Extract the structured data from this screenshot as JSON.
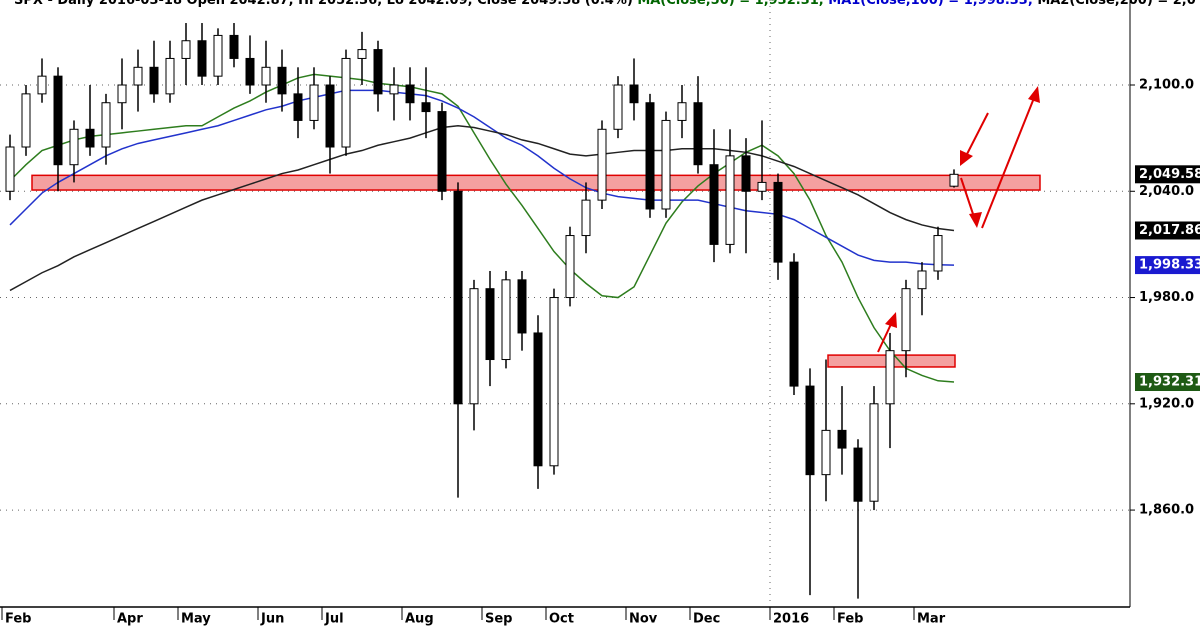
{
  "chart_data": {
    "type": "candlestick",
    "title_parts": [
      {
        "text": "SPX - Daily 2016-03-18 Open 2042.87, Hi 2052.36, Lo 2042.09, Close 2049.58 (0.4%) ",
        "color": "#000000"
      },
      {
        "text": "MA(Close,50) = 1,932.31, ",
        "color": "#006400"
      },
      {
        "text": "MA1(Close,100) = 1,998.33, ",
        "color": "#0000cc"
      },
      {
        "text": "MA2(Close,200) = 2,0",
        "color": "#000000"
      }
    ],
    "categories": [
      "Feb",
      null,
      null,
      null,
      null,
      null,
      null,
      "Apr",
      null,
      null,
      null,
      "May",
      null,
      null,
      null,
      null,
      "Jun",
      null,
      null,
      null,
      "Jul",
      null,
      null,
      null,
      null,
      "Aug",
      null,
      null,
      null,
      null,
      "Sep",
      null,
      null,
      null,
      "Oct",
      null,
      null,
      null,
      null,
      "Nov",
      null,
      null,
      null,
      "Dec",
      null,
      null,
      null,
      null,
      "2016",
      null,
      null,
      null,
      "Feb",
      null,
      null,
      null,
      null,
      "Mar",
      null,
      null
    ],
    "candles": {
      "open": [
        2040,
        2065,
        2095,
        2105,
        2055,
        2075,
        2065,
        2090,
        2100,
        2110,
        2095,
        2115,
        2125,
        2105,
        2128,
        2115,
        2100,
        2110,
        2095,
        2080,
        2100,
        2065,
        2115,
        2120,
        2095,
        2100,
        2090,
        2085,
        2040,
        1920,
        1985,
        1945,
        1990,
        1960,
        1885,
        1980,
        2015,
        2035,
        2075,
        2100,
        2090,
        2030,
        2080,
        2090,
        2055,
        2010,
        2060,
        2040,
        2045,
        2000,
        1930,
        1880,
        1905,
        1895,
        1865,
        1920,
        1950,
        1985,
        1995,
        2042.87
      ],
      "high": [
        2072,
        2100,
        2115,
        2110,
        2080,
        2100,
        2095,
        2115,
        2120,
        2125,
        2125,
        2135,
        2135,
        2132,
        2135,
        2128,
        2125,
        2120,
        2110,
        2110,
        2105,
        2120,
        2130,
        2125,
        2110,
        2110,
        2110,
        2090,
        2045,
        1990,
        1995,
        1995,
        1995,
        1970,
        1985,
        2020,
        2045,
        2080,
        2105,
        2115,
        2095,
        2085,
        2100,
        2105,
        2075,
        2075,
        2070,
        2080,
        2050,
        2005,
        1940,
        1945,
        1930,
        1900,
        1930,
        1960,
        1990,
        2000,
        2020,
        2052.36
      ],
      "low": [
        2035,
        2060,
        2090,
        2040,
        2045,
        2060,
        2055,
        2075,
        2085,
        2090,
        2090,
        2100,
        2100,
        2100,
        2110,
        2095,
        2090,
        2085,
        2070,
        2075,
        2050,
        2060,
        2100,
        2085,
        2080,
        2080,
        2070,
        2035,
        1867,
        1905,
        1930,
        1940,
        1950,
        1872,
        1880,
        1975,
        2005,
        2030,
        2070,
        2080,
        2025,
        2025,
        2070,
        2050,
        2000,
        2005,
        2005,
        2035,
        1990,
        1925,
        1812,
        1865,
        1880,
        1810,
        1860,
        1895,
        1935,
        1970,
        1990,
        2042.09
      ],
      "close": [
        2065,
        2095,
        2105,
        2055,
        2075,
        2065,
        2090,
        2100,
        2110,
        2095,
        2115,
        2125,
        2105,
        2128,
        2115,
        2100,
        2110,
        2095,
        2080,
        2100,
        2065,
        2115,
        2120,
        2095,
        2100,
        2090,
        2085,
        2040,
        1920,
        1985,
        1945,
        1990,
        1960,
        1885,
        1980,
        2015,
        2035,
        2075,
        2100,
        2090,
        2030,
        2080,
        2090,
        2055,
        2010,
        2060,
        2040,
        2045,
        2000,
        1930,
        1880,
        1905,
        1895,
        1865,
        1920,
        1950,
        1985,
        1995,
        2015,
        2049.58
      ],
      "value_labels": [
        null,
        null,
        null,
        null,
        null,
        null,
        null,
        null,
        null,
        null,
        null,
        null,
        null,
        null,
        null,
        null,
        null,
        null,
        null,
        null,
        null,
        null,
        null,
        null,
        null,
        null,
        null,
        null,
        null,
        null,
        null,
        null,
        null,
        null,
        null,
        null,
        null,
        null,
        null,
        null,
        null,
        null,
        null,
        null,
        null,
        null,
        null,
        null,
        null,
        null,
        null,
        null,
        null,
        null,
        null,
        null,
        null,
        null,
        null,
        "2,049.58"
      ],
      "up_color": "#ffffff",
      "down_color": "#000000",
      "label_color": "#000000"
    },
    "series": [
      {
        "name": "MA(Close,50)",
        "color": "#2e7d1e",
        "values": [
          2046,
          2055,
          2063,
          2066,
          2069,
          2071,
          2072,
          2073,
          2074,
          2075,
          2076,
          2077,
          2077,
          2082,
          2087,
          2091,
          2096,
          2100,
          2104,
          2106,
          2105,
          2104,
          2103,
          2101,
          2100,
          2099,
          2097,
          2095,
          2088,
          2073,
          2058,
          2044,
          2032,
          2019,
          2006,
          1996,
          1988,
          1981,
          1980,
          1986,
          2004,
          2022,
          2034,
          2043,
          2050,
          2056,
          2062,
          2066,
          2060,
          2050,
          2035,
          2015,
          2000,
          1980,
          1963,
          1950,
          1940,
          1936,
          1933,
          1932.31
        ],
        "value_labels": [
          null,
          null,
          null,
          null,
          null,
          null,
          null,
          null,
          null,
          null,
          null,
          null,
          null,
          null,
          null,
          null,
          null,
          null,
          null,
          null,
          null,
          null,
          null,
          null,
          null,
          null,
          null,
          null,
          null,
          null,
          null,
          null,
          null,
          null,
          null,
          null,
          null,
          null,
          null,
          null,
          null,
          null,
          null,
          null,
          null,
          null,
          null,
          null,
          null,
          null,
          null,
          null,
          null,
          null,
          null,
          null,
          null,
          null,
          null,
          "1,932.31"
        ],
        "label_color": "#1e5a14"
      },
      {
        "name": "MA1(Close,100)",
        "color": "#2233cc",
        "values": [
          2021,
          2030,
          2039,
          2045,
          2050,
          2055,
          2060,
          2064,
          2067,
          2069,
          2071,
          2073,
          2075,
          2077,
          2080,
          2083,
          2086,
          2088,
          2091,
          2093,
          2095,
          2097,
          2097,
          2097,
          2096,
          2095,
          2094,
          2091,
          2087,
          2082,
          2076,
          2070,
          2066,
          2060,
          2053,
          2047,
          2042,
          2039,
          2037,
          2036,
          2035,
          2035,
          2035,
          2035,
          2033,
          2031,
          2029,
          2028,
          2027,
          2024,
          2019,
          2014,
          2009,
          2004,
          2001,
          2000,
          2000,
          1999,
          1998.5,
          1998.33
        ],
        "value_labels": [
          null,
          null,
          null,
          null,
          null,
          null,
          null,
          null,
          null,
          null,
          null,
          null,
          null,
          null,
          null,
          null,
          null,
          null,
          null,
          null,
          null,
          null,
          null,
          null,
          null,
          null,
          null,
          null,
          null,
          null,
          null,
          null,
          null,
          null,
          null,
          null,
          null,
          null,
          null,
          null,
          null,
          null,
          null,
          null,
          null,
          null,
          null,
          null,
          null,
          null,
          null,
          null,
          null,
          null,
          null,
          null,
          null,
          null,
          null,
          "1,998.33"
        ],
        "label_color": "#1a1ad0"
      },
      {
        "name": "MA2(Close,200)",
        "color": "#222222",
        "values": [
          1984,
          1989,
          1994,
          1998,
          2003,
          2007,
          2011,
          2015,
          2019,
          2023,
          2027,
          2031,
          2035,
          2038,
          2041,
          2044,
          2047,
          2050,
          2052,
          2055,
          2058,
          2061,
          2063,
          2066,
          2068,
          2070,
          2073,
          2076,
          2077,
          2076,
          2074,
          2072,
          2069,
          2067,
          2064,
          2061,
          2060,
          2061,
          2062,
          2063,
          2063,
          2063,
          2064,
          2064,
          2064,
          2063,
          2062,
          2060,
          2057,
          2054,
          2050,
          2046,
          2042,
          2038,
          2033,
          2028,
          2024,
          2021,
          2019,
          2017.86
        ],
        "value_labels": [
          null,
          null,
          null,
          null,
          null,
          null,
          null,
          null,
          null,
          null,
          null,
          null,
          null,
          null,
          null,
          null,
          null,
          null,
          null,
          null,
          null,
          null,
          null,
          null,
          null,
          null,
          null,
          null,
          null,
          null,
          null,
          null,
          null,
          null,
          null,
          null,
          null,
          null,
          null,
          null,
          null,
          null,
          null,
          null,
          null,
          null,
          null,
          null,
          null,
          null,
          null,
          null,
          null,
          null,
          null,
          null,
          null,
          null,
          null,
          "2,017.86"
        ],
        "label_color": "#000000"
      }
    ],
    "zones": [
      {
        "from": 2040.7,
        "to": 2049,
        "color": "#f4a0a0",
        "border": "#e00000"
      },
      {
        "from": 1940.8,
        "to": 1947.5,
        "color": "#f4a0a0",
        "border": "#e00000"
      }
    ],
    "ylim": [
      1806.4,
      2148
    ],
    "yticks": [
      {
        "value": 1860,
        "label": "1,860.0"
      },
      {
        "value": 1920,
        "label": "1,920.0"
      },
      {
        "value": 1980,
        "label": "1,980.0"
      },
      {
        "value": 2040,
        "label": "2,040.0"
      },
      {
        "value": 2100,
        "label": "2,100.0"
      }
    ],
    "grid": true
  }
}
